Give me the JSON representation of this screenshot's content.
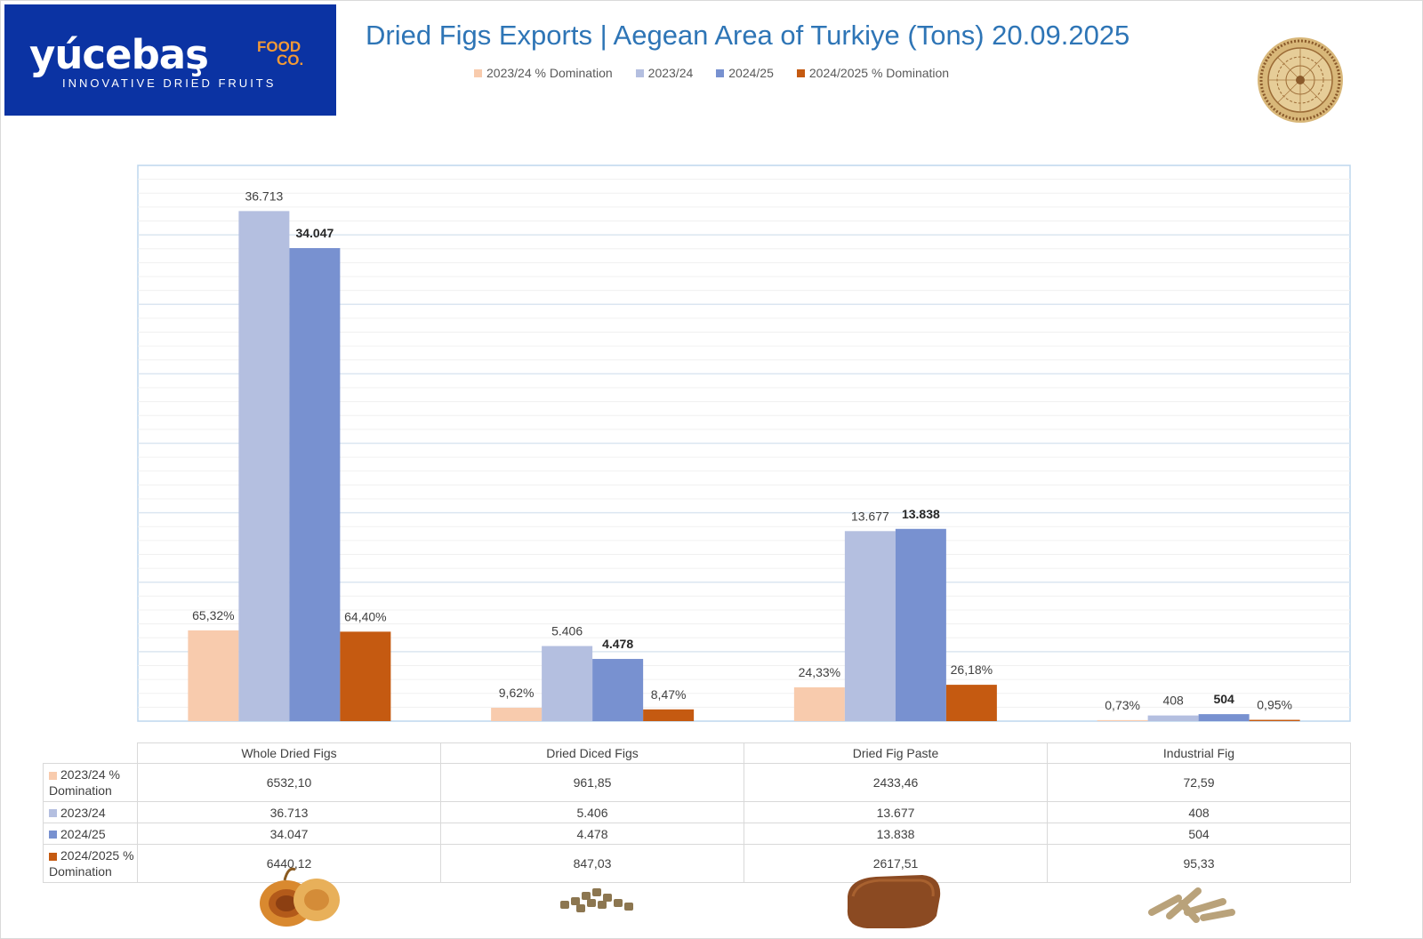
{
  "logo": {
    "main": "yúcebaş",
    "food": "FOOD",
    "co": "CO.",
    "tagline": "INNOVATIVE DRIED FRUITS"
  },
  "title": "Dried Figs Exports | Aegean Area of Turkiye (Tons) 20.09.2025",
  "colors": {
    "pct2324": "#f8cbad",
    "v2324": "#b4bfe0",
    "v2425": "#7891d0",
    "pct2425": "#c55a11",
    "brand": "#0b33a3",
    "title": "#2e75b6"
  },
  "chart_data": {
    "type": "bar",
    "categories": [
      "Whole Dried Figs",
      "Dried Diced Figs",
      "Dried Fig Paste",
      "Industrial Fig"
    ],
    "series": [
      {
        "name": "2023/24  % Domination",
        "values": [
          6532.1,
          961.85,
          2433.46,
          72.59
        ],
        "labels": [
          "65,32%",
          "9,62%",
          "24,33%",
          "0,73%"
        ],
        "color": "#f8cbad",
        "bold": false
      },
      {
        "name": "2023/24",
        "values": [
          36713,
          5406,
          13677,
          408
        ],
        "labels": [
          "36.713",
          "5.406",
          "13.677",
          "408"
        ],
        "color": "#b4bfe0",
        "bold": false
      },
      {
        "name": "2024/25",
        "values": [
          34047,
          4478,
          13838,
          504
        ],
        "labels": [
          "34.047",
          "4.478",
          "13.838",
          "504"
        ],
        "color": "#7891d0",
        "bold": true
      },
      {
        "name": "2024/2025 % Domination",
        "values": [
          6440.12,
          847.03,
          2617.51,
          95.33
        ],
        "labels": [
          "64,40%",
          "8,47%",
          "26,18%",
          "0,95%"
        ],
        "color": "#c55a11",
        "bold": false
      }
    ],
    "ylim": [
      0,
      40000
    ],
    "xlabel": "",
    "ylabel": "",
    "grid": true,
    "legend": "top",
    "table": {
      "row_headers": [
        "2023/24  % Domination",
        "2023/24",
        "2024/25",
        "2024/2025 % Domination"
      ],
      "rows": [
        [
          "6532,10",
          "961,85",
          "2433,46",
          "72,59"
        ],
        [
          "36.713",
          "5.406",
          "13.677",
          "408"
        ],
        [
          "34.047",
          "4.478",
          "13.838",
          "504"
        ],
        [
          "6440,12",
          "847,03",
          "2617,51",
          "95,33"
        ]
      ]
    }
  }
}
